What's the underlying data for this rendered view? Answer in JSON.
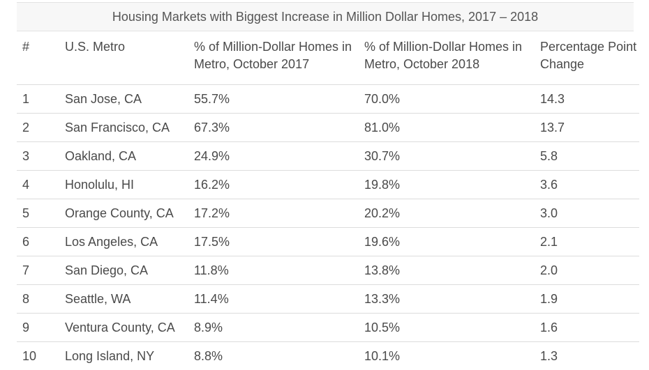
{
  "chart_data": {
    "type": "table",
    "title": "Housing Markets with Biggest Increase in Million Dollar Homes, 2017 – 2018",
    "columns": [
      "#",
      "U.S. Metro",
      "% of Million-Dollar Homes in Metro, October 2017",
      "% of Million-Dollar Homes in Metro, October 2018",
      "Percentage Point Change"
    ],
    "rows": [
      [
        "1",
        "San Jose, CA",
        "55.7%",
        "70.0%",
        "14.3"
      ],
      [
        "2",
        "San Francisco, CA",
        "67.3%",
        "81.0%",
        "13.7"
      ],
      [
        "3",
        "Oakland, CA",
        "24.9%",
        "30.7%",
        "5.8"
      ],
      [
        "4",
        "Honolulu, HI",
        "16.2%",
        "19.8%",
        "3.6"
      ],
      [
        "5",
        "Orange County, CA",
        "17.2%",
        "20.2%",
        "3.0"
      ],
      [
        "6",
        "Los Angeles, CA",
        "17.5%",
        "19.6%",
        "2.1"
      ],
      [
        "7",
        "San Diego, CA",
        "11.8%",
        "13.8%",
        "2.0"
      ],
      [
        "8",
        "Seattle, WA",
        "11.4%",
        "13.3%",
        "1.9"
      ],
      [
        "9",
        "Ventura County, CA",
        "8.9%",
        "10.5%",
        "1.6"
      ],
      [
        "10",
        "Long Island, NY",
        "8.8%",
        "10.1%",
        "1.3"
      ]
    ]
  },
  "colors": {
    "text": "#4a4a4a",
    "title_background": "#f7f7f7",
    "rule": "#dcdcdc"
  }
}
